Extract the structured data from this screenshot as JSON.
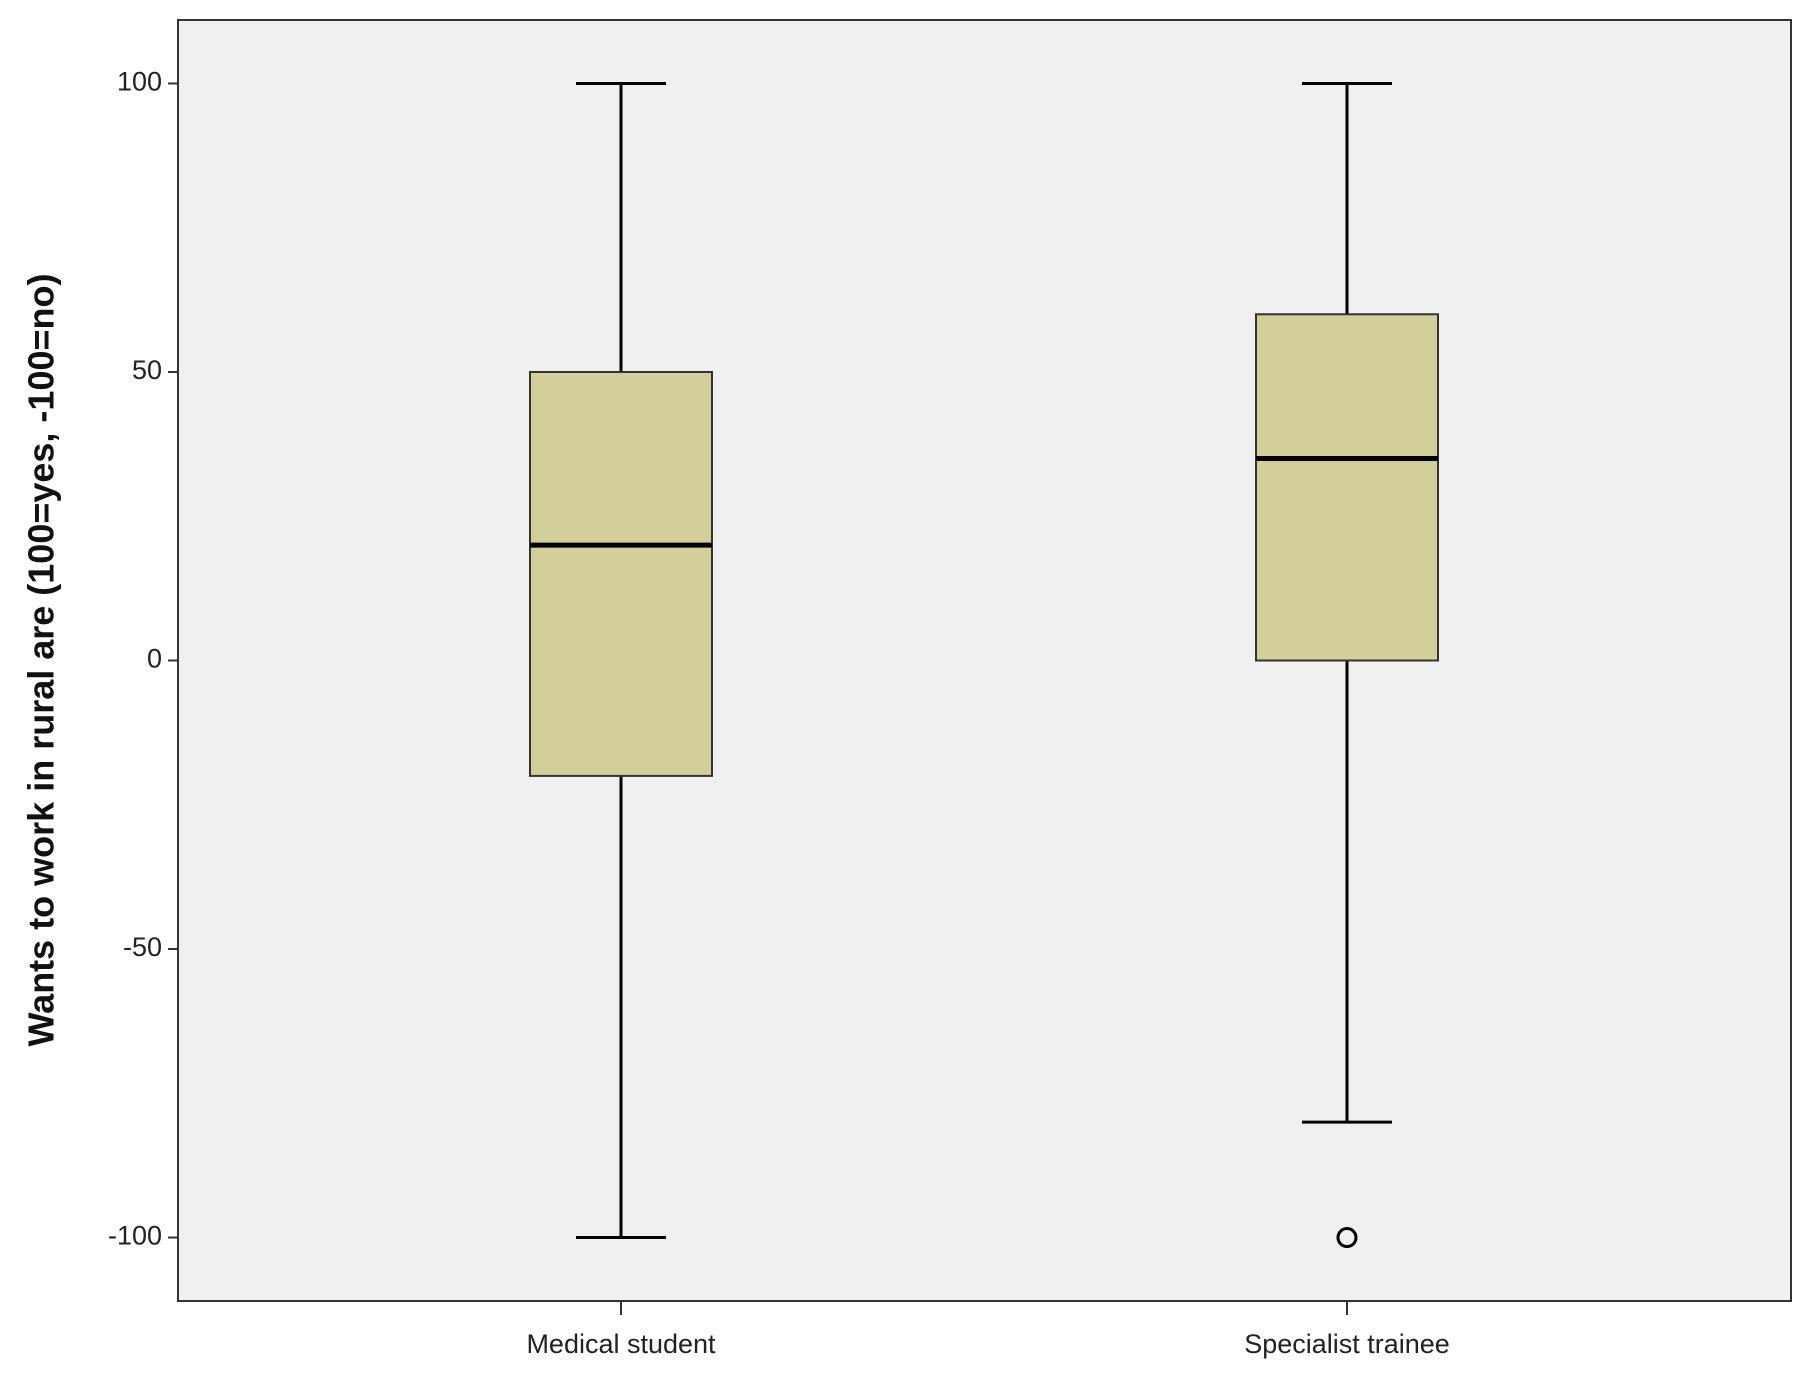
{
  "chart_data": {
    "type": "box",
    "ylabel": "Wants to work in rural are (100=yes, -100=no)",
    "categories": [
      "Medical student",
      "Specialist trainee"
    ],
    "boxes": [
      {
        "min": -100,
        "q1": -20,
        "median": 20,
        "q3": 50,
        "max": 100,
        "outliers": []
      },
      {
        "min": -80,
        "q1": 0,
        "median": 35,
        "q3": 60,
        "max": 100,
        "outliers": [
          -100
        ]
      }
    ],
    "color": "#d3cf99",
    "plot_background": "#f0f0f0",
    "ylim": [
      -111,
      111
    ],
    "yticks": [
      -100,
      -50,
      0,
      50,
      100
    ]
  }
}
